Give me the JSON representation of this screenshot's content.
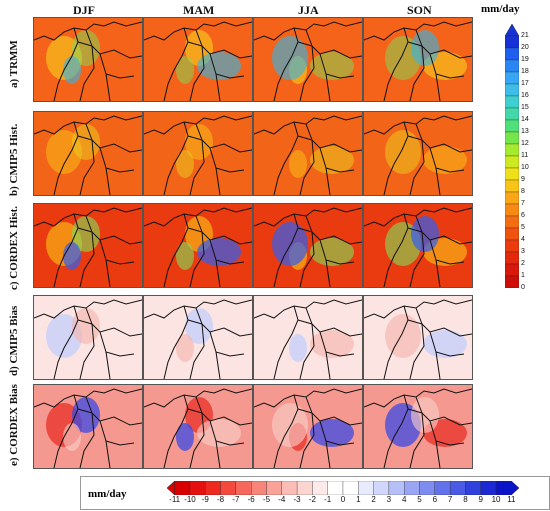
{
  "seasons": [
    "DJF",
    "MAM",
    "JJA",
    "SON"
  ],
  "rows": [
    {
      "letter": "a)",
      "name": "TRMM"
    },
    {
      "letter": "b)",
      "name": "CMIP5 Hist."
    },
    {
      "letter": "c)",
      "name": "CORDEX Hist."
    },
    {
      "letter": "d)",
      "name": "CMIP5 Bias"
    },
    {
      "letter": "e)",
      "name": "CORDEX Bias"
    }
  ],
  "precip_colorbar": {
    "unit": "mm/day",
    "ticks": [
      "21",
      "20",
      "19",
      "18",
      "17",
      "16",
      "15",
      "14",
      "13",
      "12",
      "11",
      "10",
      "9",
      "8",
      "7",
      "6",
      "5",
      "4",
      "3",
      "2",
      "1",
      "0"
    ],
    "colors": [
      "#1632d6",
      "#1f5ff0",
      "#2b86f5",
      "#36a6f5",
      "#3dbde8",
      "#3ecfd0",
      "#42d8a8",
      "#4fe07c",
      "#74e64c",
      "#a4ea2f",
      "#cdea20",
      "#eee11a",
      "#f8c418",
      "#f9a716",
      "#f88a14",
      "#f56d12",
      "#f05310",
      "#eb3c0e",
      "#e3280c",
      "#d8180a",
      "#cc0d08"
    ]
  },
  "bias_colorbar": {
    "unit": "mm/day",
    "ticks": [
      "-11",
      "-10",
      "-9",
      "-8",
      "-7",
      "-6",
      "-5",
      "-4",
      "-3",
      "-2",
      "-1",
      "0",
      "1",
      "2",
      "3",
      "4",
      "5",
      "6",
      "7",
      "8",
      "9",
      "10",
      "11"
    ],
    "colors": [
      "#d80000",
      "#e41010",
      "#ee2a20",
      "#f44a3e",
      "#f6675c",
      "#f8857a",
      "#faa298",
      "#fcbdb6",
      "#fdd5d0",
      "#feeae8",
      "#ffffff",
      "#ffffff",
      "#e8ebfe",
      "#d0d6fc",
      "#b6bff8",
      "#9aa6f4",
      "#7e8cef",
      "#6272ea",
      "#4a5ae4",
      "#3040dc",
      "#1c28d2",
      "#0c14c8"
    ]
  }
}
